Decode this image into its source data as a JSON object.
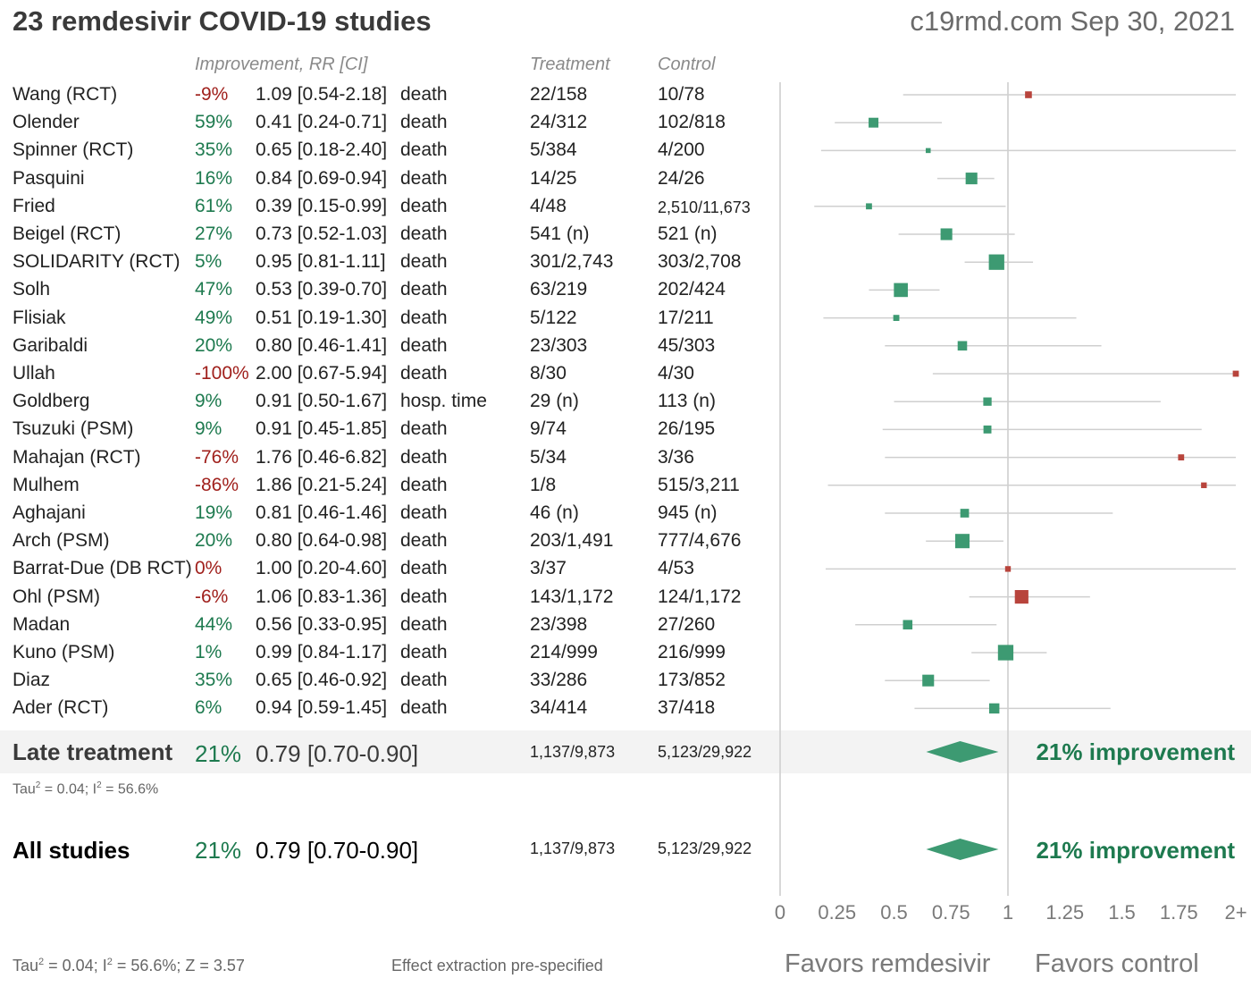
{
  "title": "23 remdesivir COVID-19 studies",
  "source": "c19rmd.com Sep 30, 2021",
  "headers": {
    "improvement": "Improvement, RR [CI]",
    "treatment": "Treatment",
    "control": "Control"
  },
  "colors": {
    "favorable": "#1e7a4f",
    "unfavorable": "#a0201c",
    "marker_green": "#3d9a72",
    "marker_red": "#b8443c",
    "ci_line": "#cfcfcf",
    "axis": "#cccccc"
  },
  "studies": [
    {
      "name": "Wang (RCT)",
      "improvement": "-9%",
      "rr_ci": "1.09 [0.54-2.18]",
      "outcome": "death",
      "treatment": "22/158",
      "control": "10/78",
      "rr": 1.09,
      "lo": 0.54,
      "hi": 2.18,
      "weight": 1.1
    },
    {
      "name": "Olender",
      "improvement": "59%",
      "rr_ci": "0.41 [0.24-0.71]",
      "outcome": "death",
      "treatment": "24/312",
      "control": "102/818",
      "rr": 0.41,
      "lo": 0.24,
      "hi": 0.71,
      "weight": 1.9
    },
    {
      "name": "Spinner (RCT)",
      "improvement": "35%",
      "rr_ci": "0.65 [0.18-2.40]",
      "outcome": "death",
      "treatment": "5/384",
      "control": "4/200",
      "rr": 0.65,
      "lo": 0.18,
      "hi": 2.4,
      "weight": 0.6
    },
    {
      "name": "Pasquini",
      "improvement": "16%",
      "rr_ci": "0.84 [0.69-0.94]",
      "outcome": "death",
      "treatment": "14/25",
      "control": "24/26",
      "rr": 0.84,
      "lo": 0.69,
      "hi": 0.94,
      "weight": 2.4
    },
    {
      "name": "Fried",
      "improvement": "61%",
      "rr_ci": "0.39 [0.15-0.99]",
      "outcome": "death",
      "treatment": "4/48",
      "control": "2,510/11,673",
      "rr": 0.39,
      "lo": 0.15,
      "hi": 0.99,
      "weight": 0.9
    },
    {
      "name": "Beigel (RCT)",
      "improvement": "27%",
      "rr_ci": "0.73 [0.52-1.03]",
      "outcome": "death",
      "treatment": "541 (n)",
      "control": "521 (n)",
      "rr": 0.73,
      "lo": 0.52,
      "hi": 1.03,
      "weight": 2.4
    },
    {
      "name": "SOLIDARITY (RCT)",
      "improvement": "5%",
      "rr_ci": "0.95 [0.81-1.11]",
      "outcome": "death",
      "treatment": "301/2,743",
      "control": "303/2,708",
      "rr": 0.95,
      "lo": 0.81,
      "hi": 1.11,
      "weight": 3.4
    },
    {
      "name": "Solh",
      "improvement": "47%",
      "rr_ci": "0.53 [0.39-0.70]",
      "outcome": "death",
      "treatment": "63/219",
      "control": "202/424",
      "rr": 0.53,
      "lo": 0.39,
      "hi": 0.7,
      "weight": 3.0
    },
    {
      "name": "Flisiak",
      "improvement": "49%",
      "rr_ci": "0.51 [0.19-1.30]",
      "outcome": "death",
      "treatment": "5/122",
      "control": "17/211",
      "rr": 0.51,
      "lo": 0.19,
      "hi": 1.3,
      "weight": 0.9
    },
    {
      "name": "Garibaldi",
      "improvement": "20%",
      "rr_ci": "0.80 [0.46-1.41]",
      "outcome": "death",
      "treatment": "23/303",
      "control": "45/303",
      "rr": 0.8,
      "lo": 0.46,
      "hi": 1.41,
      "weight": 1.8
    },
    {
      "name": "Ullah",
      "improvement": "-100%",
      "rr_ci": "2.00 [0.67-5.94]",
      "outcome": "death",
      "treatment": "8/30",
      "control": "4/30",
      "rr": 2.0,
      "lo": 0.67,
      "hi": 5.94,
      "weight": 0.9
    },
    {
      "name": "Goldberg",
      "improvement": "9%",
      "rr_ci": "0.91 [0.50-1.67]",
      "outcome": "hosp. time",
      "treatment": "29 (n)",
      "control": "113 (n)",
      "rr": 0.91,
      "lo": 0.5,
      "hi": 1.67,
      "weight": 1.5
    },
    {
      "name": "Tsuzuki (PSM)",
      "improvement": "9%",
      "rr_ci": "0.91 [0.45-1.85]",
      "outcome": "death",
      "treatment": "9/74",
      "control": "26/195",
      "rr": 0.91,
      "lo": 0.45,
      "hi": 1.85,
      "weight": 1.4
    },
    {
      "name": "Mahajan (RCT)",
      "improvement": "-76%",
      "rr_ci": "1.76 [0.46-6.82]",
      "outcome": "death",
      "treatment": "5/34",
      "control": "3/36",
      "rr": 1.76,
      "lo": 0.46,
      "hi": 6.82,
      "weight": 0.9
    },
    {
      "name": "Mulhem",
      "improvement": "-86%",
      "rr_ci": "1.86 [0.21-5.24]",
      "outcome": "death",
      "treatment": "1/8",
      "control": "515/3,211",
      "rr": 1.86,
      "lo": 0.21,
      "hi": 5.24,
      "weight": 0.8
    },
    {
      "name": "Aghajani",
      "improvement": "19%",
      "rr_ci": "0.81 [0.46-1.46]",
      "outcome": "death",
      "treatment": "46 (n)",
      "control": "945 (n)",
      "rr": 0.81,
      "lo": 0.46,
      "hi": 1.46,
      "weight": 1.6
    },
    {
      "name": "Arch (PSM)",
      "improvement": "20%",
      "rr_ci": "0.80 [0.64-0.98]",
      "outcome": "death",
      "treatment": "203/1,491",
      "control": "777/4,676",
      "rr": 0.8,
      "lo": 0.64,
      "hi": 0.98,
      "weight": 3.1
    },
    {
      "name": "Barrat-Due (DB RCT)",
      "improvement": "0%",
      "rr_ci": "1.00 [0.20-4.60]",
      "outcome": "death",
      "treatment": "3/37",
      "control": "4/53",
      "rr": 1.0,
      "lo": 0.2,
      "hi": 4.6,
      "weight": 0.8
    },
    {
      "name": "Ohl (PSM)",
      "improvement": "-6%",
      "rr_ci": "1.06 [0.83-1.36]",
      "outcome": "death",
      "treatment": "143/1,172",
      "control": "124/1,172",
      "rr": 1.06,
      "lo": 0.83,
      "hi": 1.36,
      "weight": 2.9
    },
    {
      "name": "Madan",
      "improvement": "44%",
      "rr_ci": "0.56 [0.33-0.95]",
      "outcome": "death",
      "treatment": "23/398",
      "control": "27/260",
      "rr": 0.56,
      "lo": 0.33,
      "hi": 0.95,
      "weight": 1.8
    },
    {
      "name": "Kuno (PSM)",
      "improvement": "1%",
      "rr_ci": "0.99 [0.84-1.17]",
      "outcome": "death",
      "treatment": "214/999",
      "control": "216/999",
      "rr": 0.99,
      "lo": 0.84,
      "hi": 1.17,
      "weight": 3.4
    },
    {
      "name": "Diaz",
      "improvement": "35%",
      "rr_ci": "0.65 [0.46-0.92]",
      "outcome": "death",
      "treatment": "33/286",
      "control": "173/852",
      "rr": 0.65,
      "lo": 0.46,
      "hi": 0.92,
      "weight": 2.4
    },
    {
      "name": "Ader (RCT)",
      "improvement": "6%",
      "rr_ci": "0.94 [0.59-1.45]",
      "outcome": "death",
      "treatment": "34/414",
      "control": "37/418",
      "rr": 0.94,
      "lo": 0.59,
      "hi": 1.45,
      "weight": 2.0
    }
  ],
  "late_treatment": {
    "label": "Late treatment",
    "improvement": "21%",
    "rr_ci": "0.79 [0.70-0.90]",
    "treatment": "1,137/9,873",
    "control": "5,123/29,922",
    "rr": 0.79,
    "lo": 0.7,
    "hi": 0.9,
    "summary": "21% improvement",
    "tau_prefix": "Tau",
    "tau_sup": "2",
    "tau_mid": " = 0.04; I",
    "i_sup": "2",
    "tau_suffix": " = 56.6%"
  },
  "all_studies": {
    "label": "All studies",
    "improvement": "21%",
    "rr_ci": "0.79 [0.70-0.90]",
    "treatment": "1,137/9,873",
    "control": "5,123/29,922",
    "rr": 0.79,
    "lo": 0.7,
    "hi": 0.9,
    "summary": "21% improvement"
  },
  "footer": {
    "tau_prefix": "Tau",
    "tau_sup": "2",
    "tau_mid": " = 0.04; I",
    "i_sup": "2",
    "tau_suffix": " = 56.6%; Z = 3.57",
    "note": "Effect extraction pre-specified",
    "favors_left": "Favors remdesivir",
    "favors_right": "Favors control"
  },
  "chart_data": {
    "type": "scatter",
    "subtype": "forest-plot",
    "x_ticks": [
      "0",
      "0.25",
      "0.5",
      "0.75",
      "1",
      "1.25",
      "1.5",
      "1.75",
      "2+"
    ],
    "xlim": [
      0,
      2
    ],
    "reference_line": 1
  }
}
